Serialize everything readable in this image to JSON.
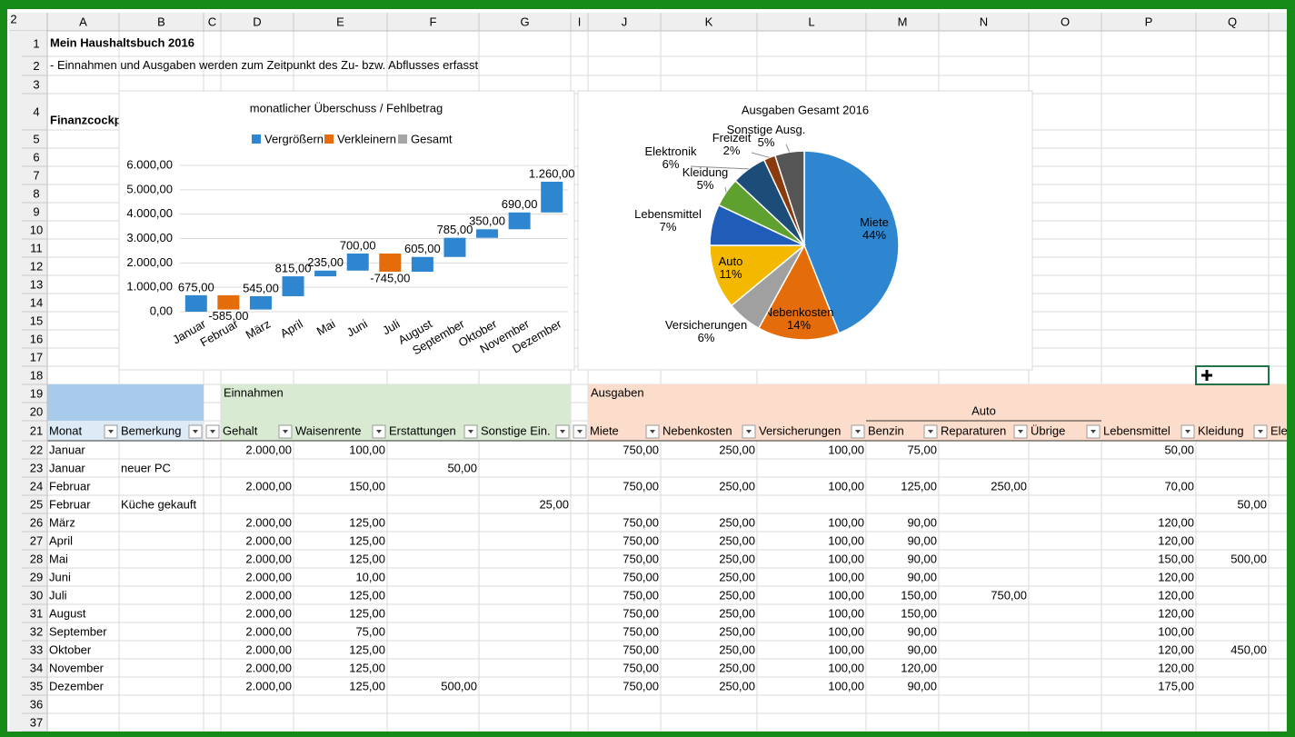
{
  "sheet": {
    "corner": "2",
    "columns": [
      "A",
      "B",
      "C",
      "D",
      "E",
      "F",
      "G",
      "I",
      "J",
      "K",
      "L",
      "M",
      "N",
      "O",
      "P",
      "Q"
    ],
    "row_numbers": [
      1,
      2,
      3,
      4,
      5,
      6,
      7,
      8,
      9,
      10,
      11,
      12,
      13,
      14,
      15,
      16,
      17,
      18,
      19,
      20,
      21,
      22,
      23,
      24,
      25,
      26,
      27,
      28,
      29,
      30,
      31,
      32,
      33,
      34,
      35,
      36,
      37
    ],
    "title": "Mein Haushaltsbuch 2016",
    "subtitle": "- Einnahmen und Ausgaben werden zum Zeitpunkt des Zu- bzw. Abflusses erfasst",
    "cockpit_label": "Finanzcockpi",
    "sections": {
      "income": "Einnahmen",
      "expenses": "Ausgaben",
      "auto": "Auto"
    },
    "table": {
      "header": [
        "Monat",
        "Bemerkung",
        null,
        "Gehalt",
        "Waisenrente",
        "Erstattungen",
        "Sonstige Ein.",
        null,
        "Miete",
        "Nebenkosten",
        "Versicherungen",
        "Benzin",
        "Reparaturen",
        "Übrige",
        "Lebensmittel",
        "Kleidung",
        "Ele"
      ],
      "rows": [
        [
          "Januar",
          null,
          null,
          "2.000,00",
          "100,00",
          null,
          null,
          null,
          "750,00",
          "250,00",
          "100,00",
          "75,00",
          null,
          null,
          "50,00",
          null,
          null
        ],
        [
          "Januar",
          "neuer PC",
          null,
          null,
          null,
          "50,00",
          null,
          null,
          null,
          null,
          null,
          null,
          null,
          null,
          null,
          null,
          null
        ],
        [
          "Februar",
          null,
          null,
          "2.000,00",
          "150,00",
          null,
          null,
          null,
          "750,00",
          "250,00",
          "100,00",
          "125,00",
          "250,00",
          null,
          "70,00",
          null,
          null
        ],
        [
          "Februar",
          "Küche gekauft",
          null,
          null,
          null,
          null,
          "25,00",
          null,
          null,
          null,
          null,
          null,
          null,
          null,
          null,
          "50,00",
          null
        ],
        [
          "März",
          null,
          null,
          "2.000,00",
          "125,00",
          null,
          null,
          null,
          "750,00",
          "250,00",
          "100,00",
          "90,00",
          null,
          null,
          "120,00",
          null,
          null
        ],
        [
          "April",
          null,
          null,
          "2.000,00",
          "125,00",
          null,
          null,
          null,
          "750,00",
          "250,00",
          "100,00",
          "90,00",
          null,
          null,
          "120,00",
          null,
          null
        ],
        [
          "Mai",
          null,
          null,
          "2.000,00",
          "125,00",
          null,
          null,
          null,
          "750,00",
          "250,00",
          "100,00",
          "90,00",
          null,
          null,
          "150,00",
          "500,00",
          null
        ],
        [
          "Juni",
          null,
          null,
          "2.000,00",
          "10,00",
          null,
          null,
          null,
          "750,00",
          "250,00",
          "100,00",
          "90,00",
          null,
          null,
          "120,00",
          null,
          null
        ],
        [
          "Juli",
          null,
          null,
          "2.000,00",
          "125,00",
          null,
          null,
          null,
          "750,00",
          "250,00",
          "100,00",
          "150,00",
          "750,00",
          null,
          "120,00",
          null,
          null
        ],
        [
          "August",
          null,
          null,
          "2.000,00",
          "125,00",
          null,
          null,
          null,
          "750,00",
          "250,00",
          "100,00",
          "150,00",
          null,
          null,
          "120,00",
          null,
          null
        ],
        [
          "September",
          null,
          null,
          "2.000,00",
          "75,00",
          null,
          null,
          null,
          "750,00",
          "250,00",
          "100,00",
          "90,00",
          null,
          null,
          "100,00",
          null,
          null
        ],
        [
          "Oktober",
          null,
          null,
          "2.000,00",
          "125,00",
          null,
          null,
          null,
          "750,00",
          "250,00",
          "100,00",
          "90,00",
          null,
          null,
          "120,00",
          "450,00",
          null
        ],
        [
          "November",
          null,
          null,
          "2.000,00",
          "125,00",
          null,
          null,
          null,
          "750,00",
          "250,00",
          "100,00",
          "120,00",
          null,
          null,
          "120,00",
          null,
          null
        ],
        [
          "Dezember",
          null,
          null,
          "2.000,00",
          "125,00",
          "500,00",
          null,
          null,
          "750,00",
          "250,00",
          "100,00",
          "90,00",
          null,
          null,
          "175,00",
          null,
          null
        ]
      ]
    }
  },
  "chart_data": [
    {
      "type": "waterfall",
      "title": "monatlicher Überschuss / Fehlbetrag",
      "legend": [
        {
          "name": "Vergrößern",
          "color": "#2e86d1"
        },
        {
          "name": "Verkleinern",
          "color": "#e46c0a"
        },
        {
          "name": "Gesamt",
          "color": "#a5a5a5"
        }
      ],
      "categories": [
        "Januar",
        "Februar",
        "März",
        "April",
        "Mai",
        "Juni",
        "Juli",
        "August",
        "September",
        "Oktober",
        "November",
        "Dezember"
      ],
      "values": [
        675,
        -585,
        545,
        815,
        235,
        700,
        -745,
        605,
        785,
        350,
        690,
        1260
      ],
      "value_labels": [
        "675,00",
        "-585,00",
        "545,00",
        "815,00",
        "235,00",
        "700,00",
        "-745,00",
        "605,00",
        "785,00",
        "350,00",
        "690,00",
        "1.260,00"
      ],
      "ylim": [
        0,
        6000
      ],
      "yticks": [
        {
          "value": 0,
          "label": "0,00"
        },
        {
          "value": 1000,
          "label": "1.000,00"
        },
        {
          "value": 2000,
          "label": "2.000,00"
        },
        {
          "value": 3000,
          "label": "3.000,00"
        },
        {
          "value": 4000,
          "label": "4.000,00"
        },
        {
          "value": 5000,
          "label": "5.000,00"
        },
        {
          "value": 6000,
          "label": "6.000,00"
        }
      ],
      "grid": true
    },
    {
      "type": "pie",
      "title": "Ausgaben Gesamt 2016",
      "categories": [
        "Miete",
        "Nebenkosten",
        "Versicherungen",
        "Auto",
        "Lebensmittel",
        "Kleidung",
        "Elektronik",
        "Freizeit",
        "Sonstige Ausg."
      ],
      "values": [
        44,
        14,
        6,
        11,
        7,
        5,
        6,
        2,
        5
      ],
      "value_labels": [
        "44%",
        "14%",
        "6%",
        "11%",
        "7%",
        "5%",
        "6%",
        "2%",
        "5%"
      ],
      "colors": [
        "#2e86d1",
        "#e46c0a",
        "#a0a0a0",
        "#f5b800",
        "#1f5db8",
        "#5ea12e",
        "#1c4c78",
        "#8a3a0e",
        "#555555"
      ]
    }
  ]
}
